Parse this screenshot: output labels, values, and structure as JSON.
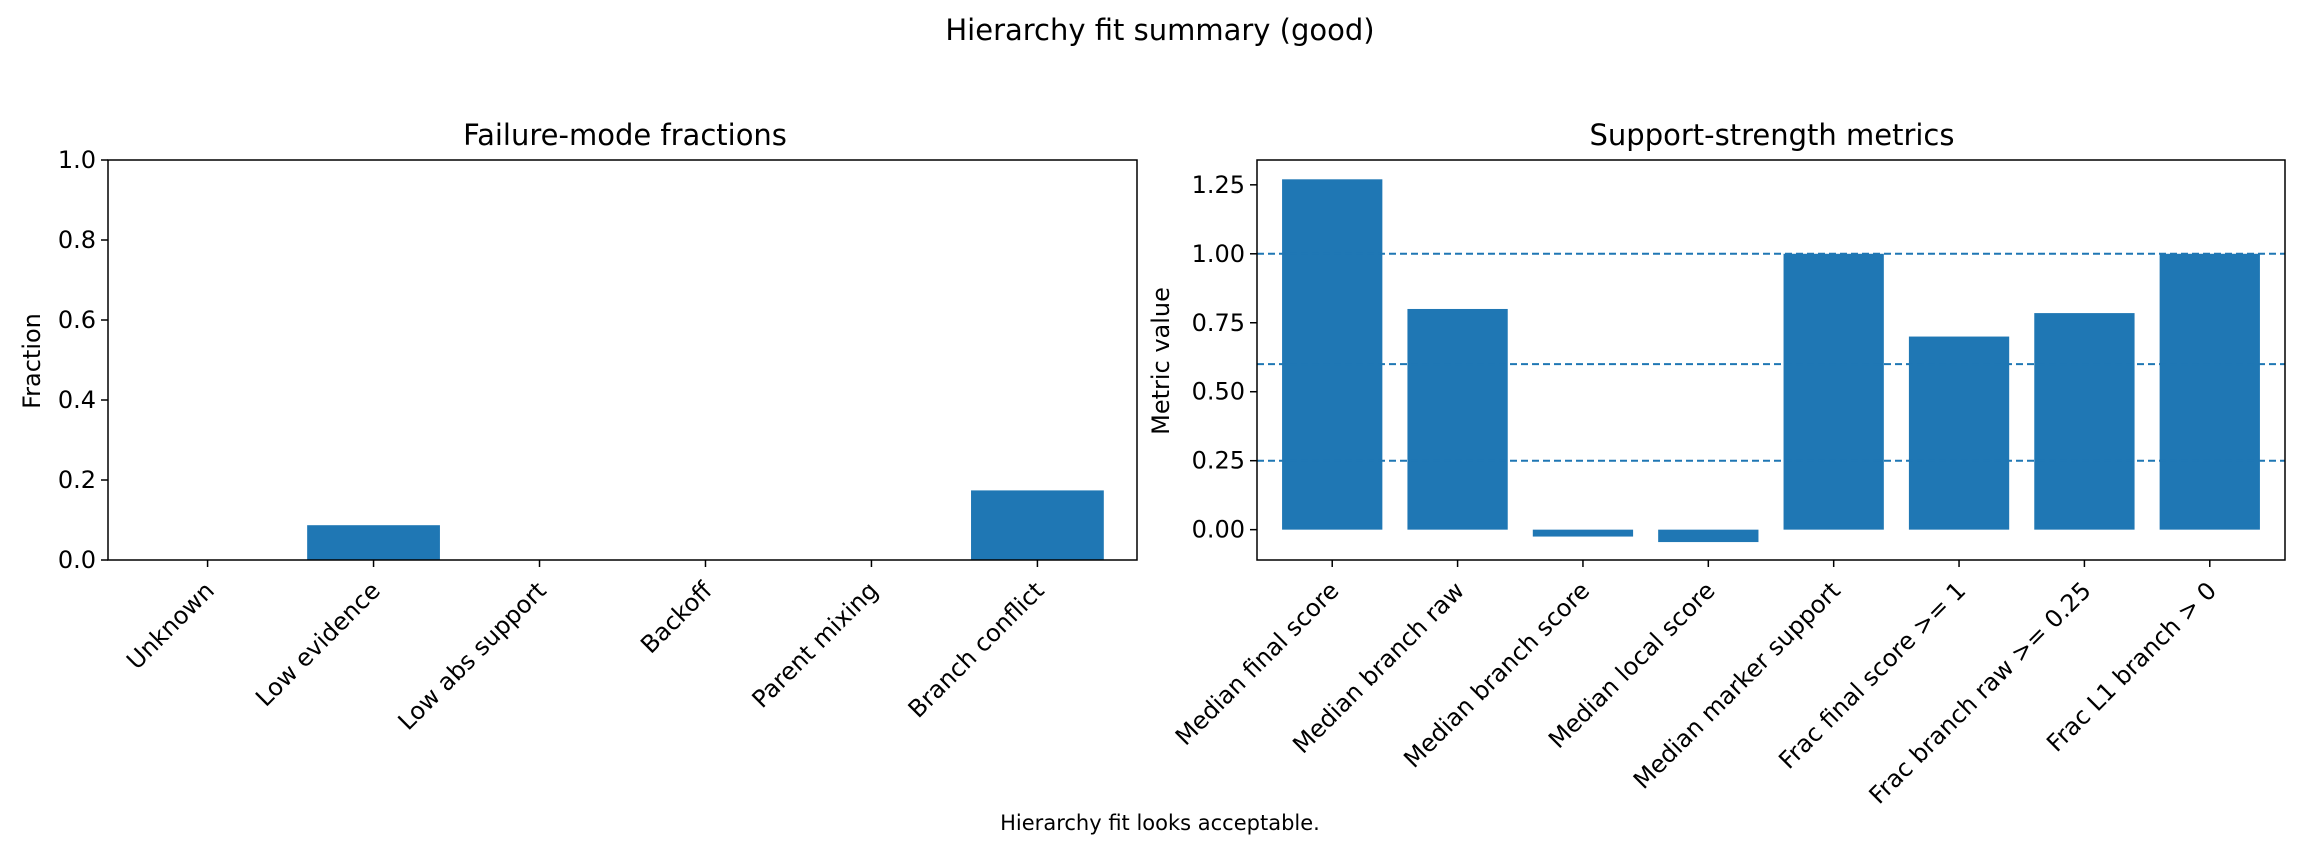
{
  "figure": {
    "title": "Hierarchy fit summary (good)",
    "footnote": "Hierarchy fit looks acceptable."
  },
  "chart_data": [
    {
      "type": "bar",
      "title": "Failure-mode fractions",
      "xlabel": "",
      "ylabel": "Fraction",
      "categories": [
        "Unknown",
        "Low evidence",
        "Low abs support",
        "Backoff",
        "Parent mixing",
        "Branch conflict"
      ],
      "values": [
        0.0,
        0.087,
        0.0,
        0.0,
        0.0,
        0.174
      ],
      "ylim": [
        0,
        1.0
      ],
      "yticks": [
        0.0,
        0.2,
        0.4,
        0.6,
        0.8,
        1.0
      ],
      "ytick_labels": [
        "0.0",
        "0.2",
        "0.4",
        "0.6",
        "0.8",
        "1.0"
      ],
      "color": "#1f77b4",
      "grid": false
    },
    {
      "type": "bar",
      "title": "Support-strength metrics",
      "xlabel": "",
      "ylabel": "Metric value",
      "categories": [
        "Median final score",
        "Median branch raw",
        "Median branch score",
        "Median local score",
        "Median marker support",
        "Frac final score >= 1",
        "Frac branch raw >= 0.25",
        "Frac L1 branch > 0"
      ],
      "values": [
        1.27,
        0.8,
        -0.025,
        -0.045,
        1.0,
        0.7,
        0.785,
        1.0
      ],
      "ylim": [
        -0.11,
        1.34
      ],
      "yticks": [
        0.0,
        0.25,
        0.5,
        0.75,
        1.0,
        1.25
      ],
      "ytick_labels": [
        "0.00",
        "0.25",
        "0.50",
        "0.75",
        "1.00",
        "1.25"
      ],
      "reference_lines": [
        1.0,
        0.6,
        0.25
      ],
      "color": "#1f77b4",
      "grid": false
    }
  ]
}
